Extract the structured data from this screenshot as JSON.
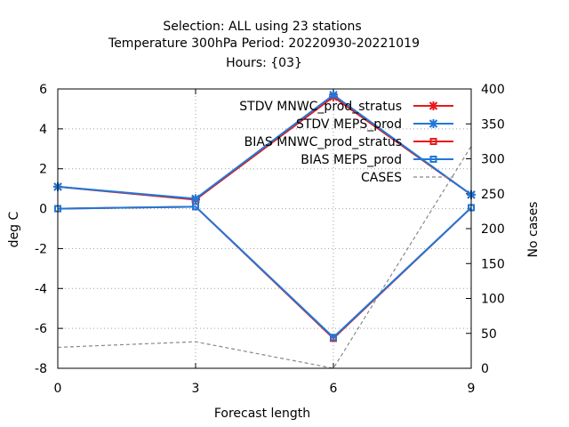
{
  "chart_data": {
    "type": "line",
    "title": [
      "Selection: ALL using    23 stations",
      "Temperature 300hPa   Period: 20220930-20221019",
      "Hours: {03}"
    ],
    "xlabel": "Forecast length",
    "ylabel": "deg C",
    "y2label": "No cases",
    "x": [
      0,
      3,
      6,
      9
    ],
    "xlim": [
      0,
      9
    ],
    "ylim": [
      -8,
      6
    ],
    "y2lim": [
      0,
      400
    ],
    "xticks": [
      "0",
      "3",
      "6",
      "9"
    ],
    "yticks": [
      "-8",
      "-6",
      "-4",
      "-2",
      "0",
      "2",
      "4",
      "6"
    ],
    "y2ticks": [
      "0",
      "50",
      "100",
      "150",
      "200",
      "250",
      "300",
      "350",
      "400"
    ],
    "grid": true,
    "legend_position": "top-right",
    "series": [
      {
        "name": "STDV MNWC_prod_stratus",
        "axis": "y",
        "color": "#e8191b",
        "marker": "star",
        "values": [
          1.1,
          0.45,
          5.6,
          0.7
        ]
      },
      {
        "name": "STDV MEPS_prod",
        "axis": "y",
        "color": "#1f78d8",
        "marker": "star",
        "values": [
          1.1,
          0.5,
          5.7,
          0.7
        ]
      },
      {
        "name": "BIAS MNWC_prod_stratus",
        "axis": "y",
        "color": "#e8191b",
        "marker": "square",
        "values": [
          0.0,
          0.1,
          -6.5,
          0.05
        ]
      },
      {
        "name": "BIAS MEPS_prod",
        "axis": "y",
        "color": "#1f78d8",
        "marker": "square",
        "values": [
          0.0,
          0.1,
          -6.45,
          0.05
        ]
      },
      {
        "name": "CASES",
        "axis": "y2",
        "color": "#888888",
        "marker": "none",
        "dashed": true,
        "values": [
          30,
          38,
          0,
          318
        ]
      }
    ]
  }
}
